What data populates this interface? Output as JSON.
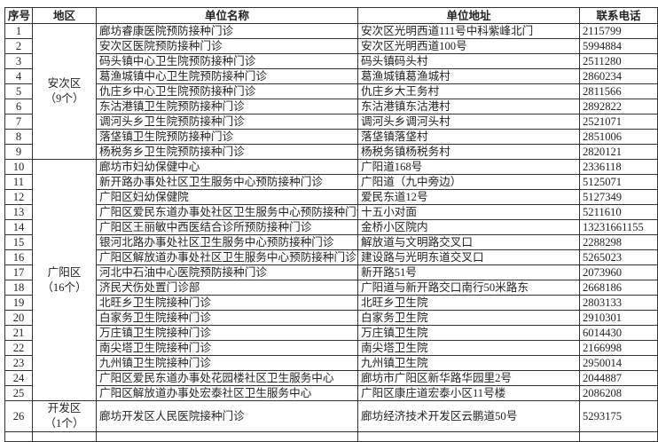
{
  "headers": [
    "序号",
    "地区",
    "单位名称",
    "单位地址",
    "联系电话"
  ],
  "regions": [
    {
      "name": "安次区",
      "count": "（9个）"
    },
    {
      "name": "广阳区",
      "count": "（16个）"
    },
    {
      "name": "开发区",
      "count": "（1个）"
    }
  ],
  "rows": [
    {
      "no": "1",
      "name": "廊坊睿康医院预防接种门诊",
      "address": "安次区光明西道111号中科紫峰北门",
      "phone": "2115799"
    },
    {
      "no": "2",
      "name": "安次区医院预防接种门诊",
      "address": "安次区光明西道100号",
      "phone": "5994884"
    },
    {
      "no": "3",
      "name": "码头镇中心卫生院预防接种门诊",
      "address": "码头镇码头村",
      "phone": "2511280"
    },
    {
      "no": "4",
      "name": "葛渔城镇中心卫生院预防接种门诊",
      "address": "葛渔城镇葛渔城村",
      "phone": "2860234"
    },
    {
      "no": "5",
      "name": "仇庄乡中心卫生院预防接种门诊",
      "address": "仇庄乡大王务村",
      "phone": "2811566"
    },
    {
      "no": "6",
      "name": "东沽港镇卫生院预防接种门诊",
      "address": "东沽港镇东沽港村",
      "phone": "2892822"
    },
    {
      "no": "7",
      "name": "调河头乡卫生院预防接种门诊",
      "address": "调河头乡调河头村",
      "phone": "2521071"
    },
    {
      "no": "8",
      "name": "落垡镇卫生院预防接种门诊",
      "address": "落垡镇落垡村",
      "phone": "2851006"
    },
    {
      "no": "9",
      "name": "杨税务乡卫生院预防接种门诊",
      "address": "杨税务镇杨税务村",
      "phone": "2820121"
    },
    {
      "no": "10",
      "name": "廊坊市妇幼保健中心",
      "address": "广阳道168号",
      "phone": "2336118"
    },
    {
      "no": "11",
      "name": "新开路办事处社区卫生服务中心预防接种门诊",
      "address": "广阳道（九中旁边）",
      "phone": "5125071"
    },
    {
      "no": "12",
      "name": "广阳区妇幼保健院",
      "address": "爱民东道12号",
      "phone": "5127349"
    },
    {
      "no": "13",
      "name": "广阳区爱民东道办事处社区卫生服务中心预防接种门诊",
      "address": "十五小对面",
      "phone": "5211610"
    },
    {
      "no": "14",
      "name": "广阳区王丽敏中西医结合诊所预防接种门诊",
      "address": "金桥小区院内",
      "phone": "13231661155"
    },
    {
      "no": "15",
      "name": "银河北路办事处社区卫生服务中心预防接种门诊",
      "address": "解放道与文明路交叉口",
      "phone": "2288298"
    },
    {
      "no": "16",
      "name": "广阳区解放道办事处社区卫生服务中心预防接种门诊",
      "address": "建设路与光明东道交叉口",
      "phone": "5265023"
    },
    {
      "no": "17",
      "name": "河北中石油中心医院预防接种门诊",
      "address": "新开路51号",
      "phone": "2073960"
    },
    {
      "no": "18",
      "name": "济民犬伤处置门诊部",
      "address": "广阳道与新开路交口南行50米路东",
      "phone": "2668186"
    },
    {
      "no": "19",
      "name": "北旺乡卫生院接种门诊",
      "address": "北旺乡卫生院",
      "phone": "2803133"
    },
    {
      "no": "20",
      "name": "白家务卫生院接种门诊",
      "address": "白家务卫生院",
      "phone": "2910301"
    },
    {
      "no": "21",
      "name": "万庄镇卫生院接种门诊",
      "address": "万庄镇卫生院",
      "phone": "6014430"
    },
    {
      "no": "22",
      "name": "南尖塔卫生院接种门诊",
      "address": "南尖塔卫生院",
      "phone": "2166998"
    },
    {
      "no": "23",
      "name": "九州镇卫生院接种门诊",
      "address": "九州镇卫生院",
      "phone": "2950014"
    },
    {
      "no": "24",
      "name": "广阳区爱民东道办事处花园楼社区卫生服务中心",
      "address": "廊坊市广阳区新华路华园里2号",
      "phone": "2044887"
    },
    {
      "no": "25",
      "name": "广阳区解放道办事处宏泰社区卫生服务中心",
      "address": "广阳区康庄道宏泰小区11号楼",
      "phone": "2086208"
    },
    {
      "no": "26",
      "name": "廊坊开发区人民医院接种门诊",
      "address": "廊坊经济技术开发区云鹏道50号",
      "phone": "5293175"
    }
  ]
}
